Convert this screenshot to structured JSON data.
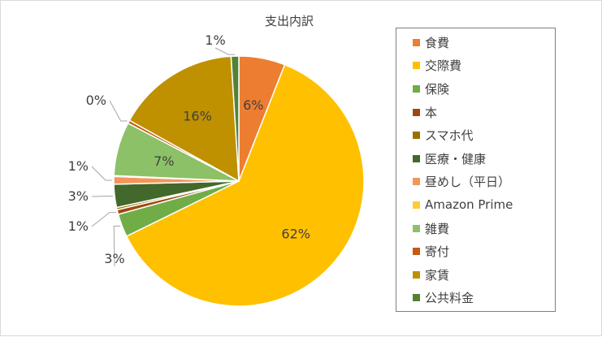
{
  "chart_data": {
    "type": "pie",
    "title": "支出内訳",
    "legend_position": "right",
    "slices": [
      {
        "label": "食費",
        "value": 6,
        "pct_label": "6%",
        "color": "#ED7D31"
      },
      {
        "label": "交際費",
        "value": 62,
        "pct_label": "62%",
        "color": "#FFC000"
      },
      {
        "label": "保険",
        "value": 3,
        "pct_label": "3%",
        "color": "#70AD47"
      },
      {
        "label": "本",
        "value": 0.6,
        "pct_label": "1%",
        "color": "#9E480E"
      },
      {
        "label": "スマホ代",
        "value": 0.3,
        "pct_label": "",
        "color": "#997300"
      },
      {
        "label": "医療・健康",
        "value": 3,
        "pct_label": "3%",
        "color": "#43682B"
      },
      {
        "label": "昼めし（平日）",
        "value": 1,
        "pct_label": "1%",
        "color": "#F1975A"
      },
      {
        "label": "Amazon Prime",
        "value": 0.1,
        "pct_label": "",
        "color": "#FFCD33"
      },
      {
        "label": "雑費",
        "value": 7,
        "pct_label": "7%",
        "color": "#8CC168"
      },
      {
        "label": "寄付",
        "value": 0.4,
        "pct_label": "0%",
        "color": "#C55A11"
      },
      {
        "label": "家賃",
        "value": 16,
        "pct_label": "16%",
        "color": "#BF9000"
      },
      {
        "label": "公共料金",
        "value": 1,
        "pct_label": "1%",
        "color": "#548235"
      }
    ]
  }
}
